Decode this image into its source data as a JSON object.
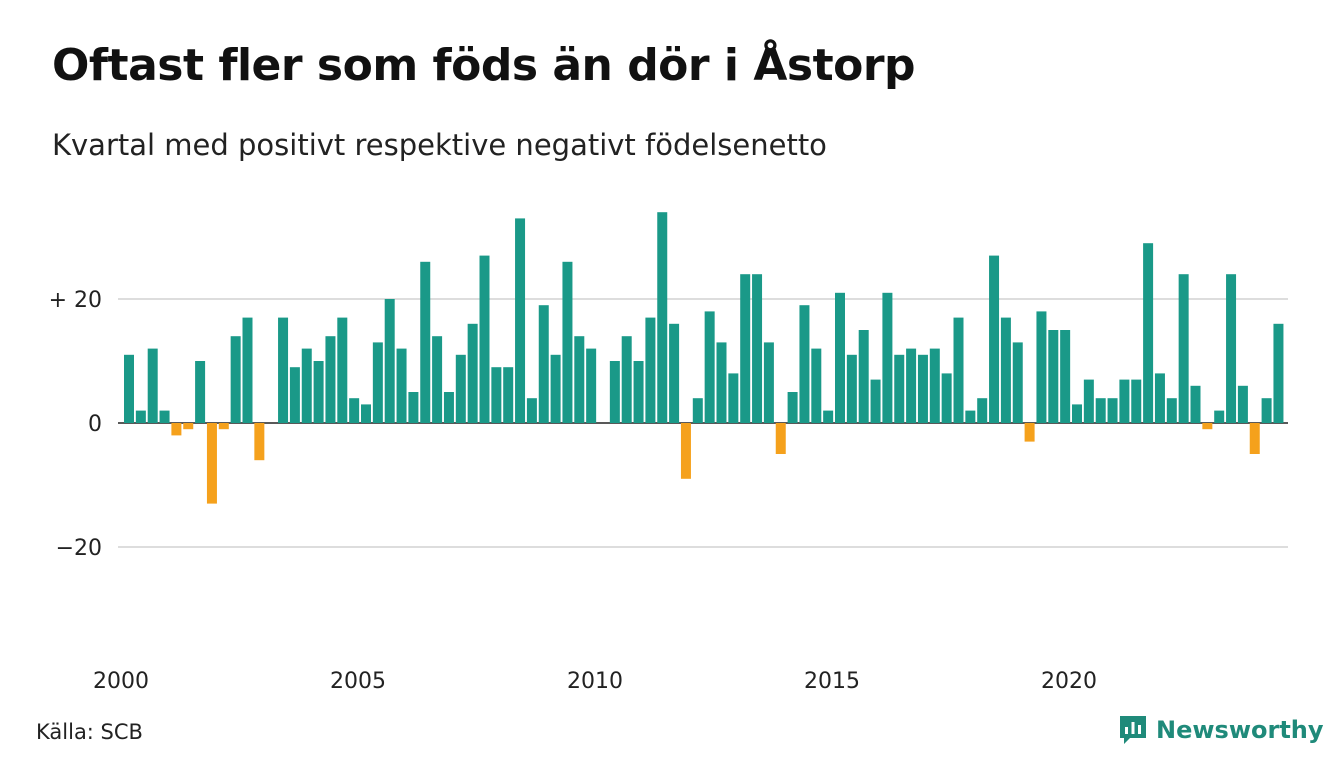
{
  "title": "Oftast fler som föds än dör i Åstorp",
  "subtitle": "Kvartal med positivt respektive negativt födelsenetto",
  "source": "Källa: SCB",
  "brand": "Newsworthy",
  "colors": {
    "positive": "#1a9988",
    "negative": "#f5a11c",
    "grid": "#dddddd",
    "brand": "#1f8a7a"
  },
  "chart_data": {
    "type": "bar",
    "x_start_year": 2000,
    "periods_per_year": 4,
    "values": [
      11,
      2,
      12,
      2,
      -2,
      -1,
      10,
      -13,
      -1,
      14,
      17,
      -6,
      0,
      17,
      9,
      12,
      10,
      14,
      17,
      4,
      3,
      13,
      20,
      12,
      5,
      26,
      14,
      5,
      11,
      16,
      27,
      9,
      9,
      33,
      4,
      19,
      11,
      26,
      14,
      12,
      0,
      10,
      14,
      10,
      17,
      34,
      16,
      -9,
      4,
      18,
      13,
      8,
      24,
      24,
      13,
      -5,
      5,
      19,
      12,
      2,
      21,
      11,
      15,
      7,
      21,
      11,
      12,
      11,
      12,
      8,
      17,
      2,
      4,
      27,
      17,
      13,
      -3,
      18,
      15,
      15,
      3,
      7,
      4,
      4,
      7,
      7,
      29,
      8,
      4,
      24,
      6,
      -1,
      2,
      24,
      6,
      -5,
      4,
      16
    ],
    "ylim": [
      -36,
      36
    ],
    "yticks": [
      {
        "value": 20,
        "label": "+ 20"
      },
      {
        "value": 0,
        "label": "0"
      },
      {
        "value": -20,
        "label": "−20"
      }
    ],
    "xticks": [
      {
        "value": 2000,
        "label": "2000"
      },
      {
        "value": 2005,
        "label": "2005"
      },
      {
        "value": 2010,
        "label": "2010"
      },
      {
        "value": 2015,
        "label": "2015"
      },
      {
        "value": 2020,
        "label": "2020"
      }
    ],
    "grid": true
  }
}
